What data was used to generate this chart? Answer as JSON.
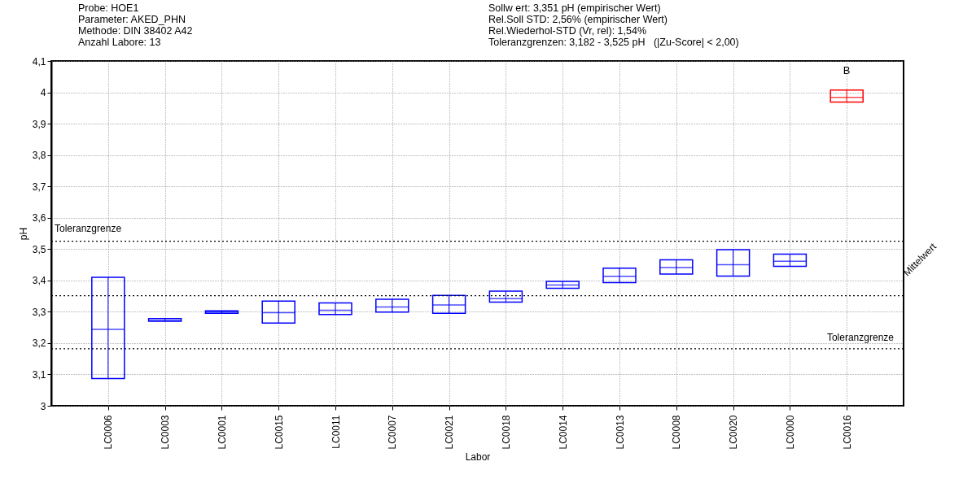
{
  "chart_data": {
    "type": "box",
    "xlabel": "Labor",
    "ylabel": "pH",
    "categories": [
      "LC0006",
      "LC0003",
      "LC0001",
      "LC0015",
      "LC0011",
      "LC0007",
      "LC0021",
      "LC0018",
      "LC0014",
      "LC0013",
      "LC0008",
      "LC0020",
      "LC0000",
      "LC0016"
    ],
    "boxes": [
      {
        "low": 3.087,
        "q1": 3.087,
        "median": 3.244,
        "q3": 3.41,
        "high": 3.41
      },
      {
        "low": 3.27,
        "q1": 3.27,
        "median": 3.272,
        "q3": 3.278,
        "high": 3.278
      },
      {
        "low": 3.295,
        "q1": 3.295,
        "median": 3.299,
        "q3": 3.303,
        "high": 3.303
      },
      {
        "low": 3.264,
        "q1": 3.264,
        "median": 3.297,
        "q3": 3.334,
        "high": 3.334
      },
      {
        "low": 3.291,
        "q1": 3.291,
        "median": 3.305,
        "q3": 3.328,
        "high": 3.328
      },
      {
        "low": 3.299,
        "q1": 3.299,
        "median": 3.315,
        "q3": 3.34,
        "high": 3.34
      },
      {
        "low": 3.295,
        "q1": 3.295,
        "median": 3.322,
        "q3": 3.352,
        "high": 3.352
      },
      {
        "low": 3.331,
        "q1": 3.331,
        "median": 3.342,
        "q3": 3.366,
        "high": 3.366
      },
      {
        "low": 3.375,
        "q1": 3.375,
        "median": 3.385,
        "q3": 3.397,
        "high": 3.397
      },
      {
        "low": 3.393,
        "q1": 3.393,
        "median": 3.413,
        "q3": 3.439,
        "high": 3.439
      },
      {
        "low": 3.42,
        "q1": 3.42,
        "median": 3.441,
        "q3": 3.466,
        "high": 3.466
      },
      {
        "low": 3.414,
        "q1": 3.414,
        "median": 3.45,
        "q3": 3.498,
        "high": 3.498
      },
      {
        "low": 3.445,
        "q1": 3.445,
        "median": 3.461,
        "q3": 3.484,
        "high": 3.484
      },
      {
        "low": 3.969,
        "q1": 3.969,
        "median": 3.984,
        "q3": 4.007,
        "high": 4.007
      }
    ],
    "colors": [
      "#0000ff",
      "#0000ff",
      "#0000ff",
      "#0000ff",
      "#0000ff",
      "#0000ff",
      "#0000ff",
      "#0000ff",
      "#0000ff",
      "#0000ff",
      "#0000ff",
      "#0000ff",
      "#0000ff",
      "#ff0000"
    ],
    "ylim": [
      3,
      4.1
    ],
    "yticks": [
      3,
      {
        "value": 3.1,
        "label": "3,1"
      },
      {
        "value": 3.2,
        "label": "3,2"
      },
      {
        "value": 3.3,
        "label": "3,3"
      },
      {
        "value": 3.4,
        "label": "3,4"
      },
      {
        "value": 3.5,
        "label": "3,5"
      },
      {
        "value": 3.6,
        "label": "3,6"
      },
      {
        "value": 3.7,
        "label": "3,7"
      },
      {
        "value": 3.8,
        "label": "3,8"
      },
      {
        "value": 3.9,
        "label": "3,9"
      },
      4,
      {
        "value": 4.1,
        "label": "4,1"
      }
    ],
    "grid": true,
    "ref_lines": [
      {
        "axis": "y",
        "value": 3.525,
        "label": "Toleranzgrenze",
        "line_style": "dotted"
      },
      {
        "axis": "y",
        "value": 3.351,
        "label": "Mittelwert",
        "line_style": "dotted"
      },
      {
        "axis": "y",
        "value": 3.182,
        "label": "Toleranzgrenze",
        "line_style": "dotted"
      }
    ],
    "annotations": [
      "Probe: HOE1",
      "Parameter: AKED_PHN",
      "Methode: DIN 38402 A42",
      "Anzahl Labore: 13",
      "Sollw ert: 3,351 pH (empirischer Wert)",
      "Rel.Soll STD: 2,56% (empirischer Wert)",
      "Rel.Wiederhol-STD (Vr, rel): 1,54%",
      "Toleranzgrenzen: 3,182 - 3,525 pH   (|Zu-Score| < 2,00)",
      "B"
    ]
  }
}
